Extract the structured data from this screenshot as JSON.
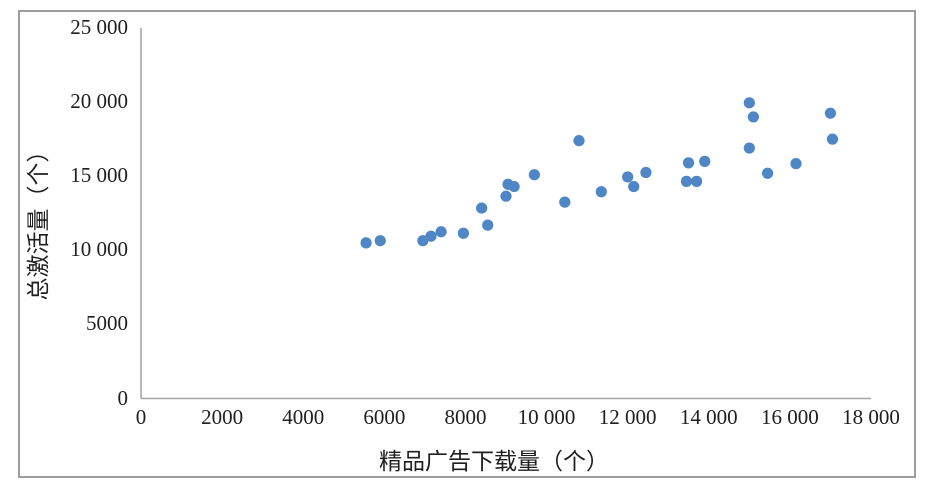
{
  "chart_data": {
    "type": "scatter",
    "title": "",
    "xlabel": "精品广告下载量（个）",
    "ylabel": "总激活量（个）",
    "xlim": [
      0,
      18000
    ],
    "ylim": [
      0,
      25000
    ],
    "grid": false,
    "legend": "none",
    "x_tick_values": [
      0,
      2000,
      4000,
      6000,
      8000,
      10000,
      12000,
      14000,
      16000,
      18000
    ],
    "x_tick_labels": [
      "0",
      "2000",
      "4000",
      "6000",
      "8000",
      "10 000",
      "12 000",
      "14 000",
      "16 000",
      "18 000"
    ],
    "y_tick_values": [
      0,
      5000,
      10000,
      15000,
      20000,
      25000
    ],
    "y_tick_labels": [
      "0",
      "5000",
      "10 000",
      "15 000",
      "20 000",
      "25 000"
    ],
    "points": [
      [
        5550,
        10500
      ],
      [
        5900,
        10650
      ],
      [
        6950,
        10650
      ],
      [
        7150,
        10950
      ],
      [
        7400,
        11250
      ],
      [
        7950,
        11150
      ],
      [
        8400,
        12850
      ],
      [
        8550,
        11700
      ],
      [
        9000,
        13650
      ],
      [
        9050,
        14450
      ],
      [
        9200,
        14300
      ],
      [
        9700,
        15100
      ],
      [
        10450,
        13250
      ],
      [
        10800,
        17400
      ],
      [
        11350,
        13950
      ],
      [
        12000,
        14950
      ],
      [
        12150,
        14300
      ],
      [
        12450,
        15250
      ],
      [
        13450,
        14650
      ],
      [
        13500,
        15900
      ],
      [
        13700,
        14650
      ],
      [
        13900,
        16000
      ],
      [
        15000,
        19950
      ],
      [
        15100,
        19000
      ],
      [
        15000,
        16900
      ],
      [
        15450,
        15200
      ],
      [
        16150,
        15850
      ],
      [
        17000,
        19250
      ],
      [
        17050,
        17500
      ]
    ],
    "point_color": "#4F86C6",
    "axis_color": "#a6a6a6",
    "text_color": "#1f1f1f",
    "frame_color": "#9e9e9e"
  }
}
